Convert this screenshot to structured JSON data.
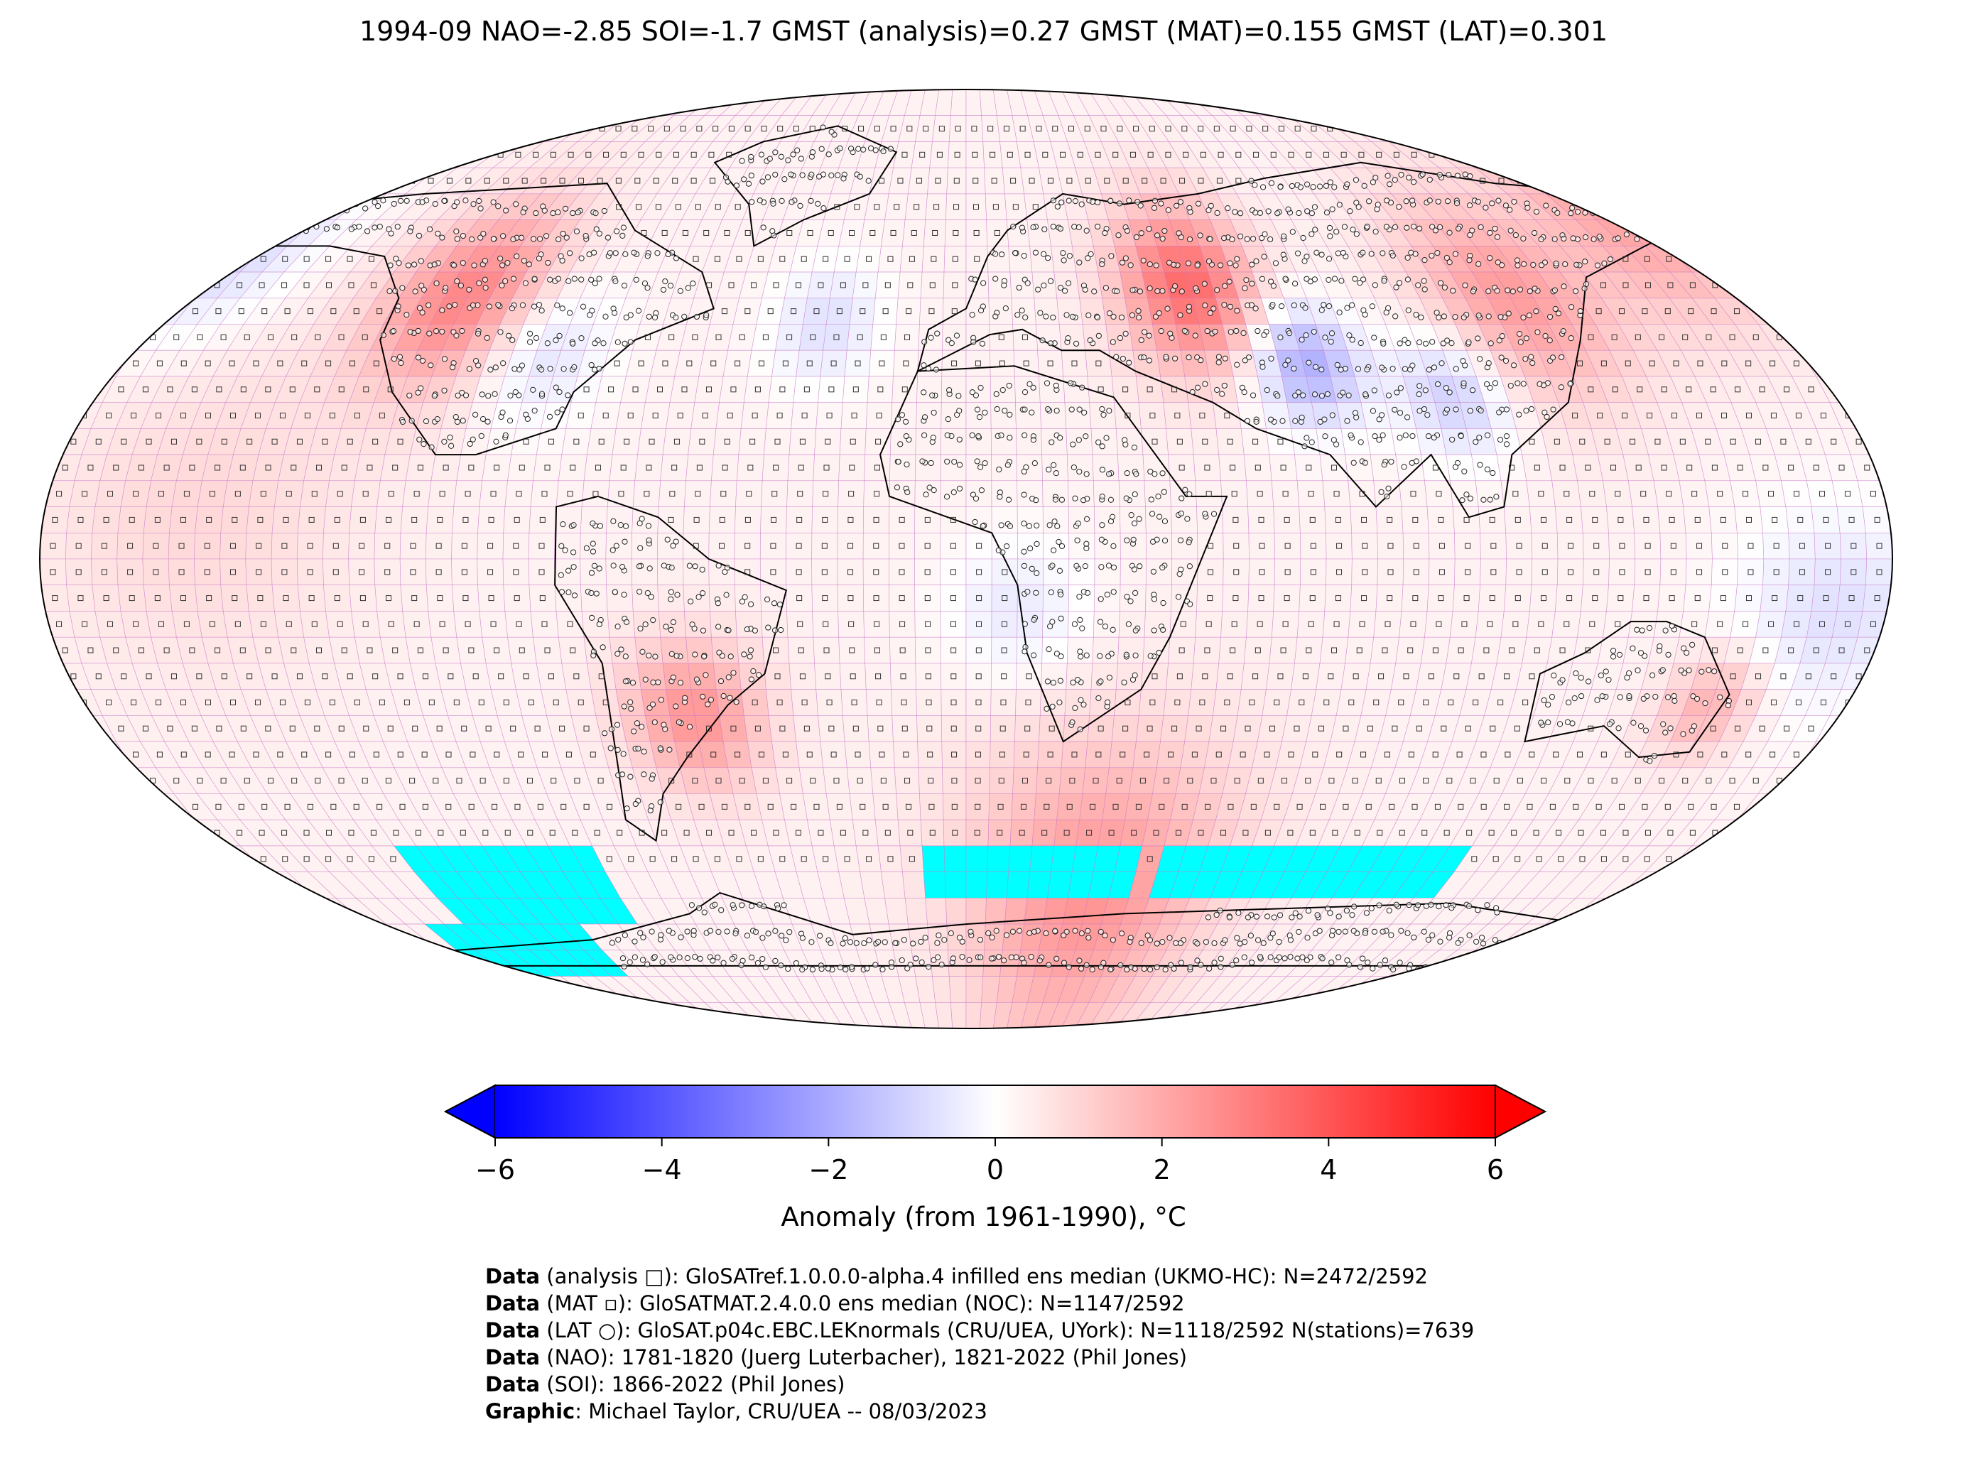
{
  "title": "1994-09 NAO=-2.85 SOI=-1.7 GMST (analysis)=0.27 GMST (MAT)=0.155 GMST (LAT)=0.301",
  "colorbar": {
    "label": "Anomaly (from 1961-1990), °C",
    "min": -6,
    "max": 6,
    "ticks": [
      "−6",
      "−4",
      "−2",
      "0",
      "2",
      "4",
      "6"
    ],
    "tick_values": [
      -6,
      -4,
      -2,
      0,
      2,
      4,
      6
    ],
    "extend": "both",
    "cmap": [
      "#0000ff",
      "#ffffff",
      "#ff0000"
    ]
  },
  "map": {
    "projection": "Robinson",
    "grid_resolution_deg": 5,
    "missing_color": "#00ffff",
    "gridline_color": "#c878c8",
    "coastline_color": "#000000",
    "marker_legend": {
      "analysis": "□",
      "mat": "▫",
      "lat": "○"
    }
  },
  "credits": [
    {
      "bold": "Data",
      "text": " (analysis □): GloSATref.1.0.0.0-alpha.4 infilled ens median (UKMO-HC): N=2472/2592"
    },
    {
      "bold": "Data",
      "text": " (MAT ▫): GloSATMAT.2.4.0.0 ens median (NOC): N=1147/2592"
    },
    {
      "bold": "Data",
      "text": " (LAT ○): GloSAT.p04c.EBC.LEKnormals (CRU/UEA, UYork): N=1118/2592 N(stations)=7639"
    },
    {
      "bold": "Data",
      "text": " (NAO): 1781-1820 (Juerg Luterbacher), 1821-2022 (Phil Jones)"
    },
    {
      "bold": "Data",
      "text": " (SOI): 1866-2022 (Phil Jones)"
    },
    {
      "bold": "Graphic",
      "text": ": Michael Taylor, CRU/UEA -- 08/03/2023"
    }
  ]
}
